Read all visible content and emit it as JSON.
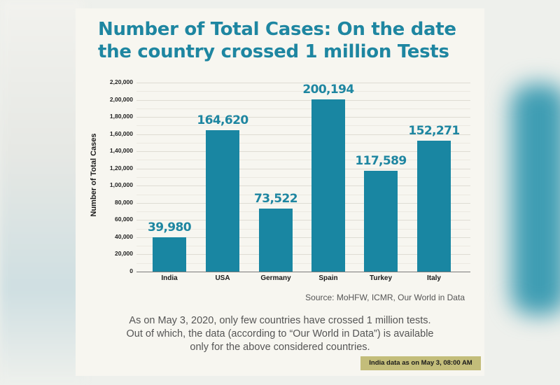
{
  "title_line1": "Number of Total Cases: On the date",
  "title_line2": "the country crossed 1 million Tests",
  "colors": {
    "accent": "#1e86a1",
    "bar": "#1986a2",
    "badge": "#c3bd7a",
    "card": "#f7f6f0"
  },
  "chart_data": {
    "type": "bar",
    "title": "Number of Total Cases: On the date the country crossed 1 million Tests",
    "xlabel": "",
    "ylabel": "Number of Total Cases",
    "categories": [
      "India",
      "USA",
      "Germany",
      "Spain",
      "Turkey",
      "Italy"
    ],
    "values": [
      39980,
      164620,
      73522,
      200194,
      117589,
      152271
    ],
    "value_labels": [
      "39,980",
      "164,620",
      "73,522",
      "200,194",
      "117,589",
      "152,271"
    ],
    "yticks": [
      "0",
      "20,000",
      "40,000",
      "60,000",
      "80,000",
      "1,00,000",
      "1,20,000",
      "1,40,000",
      "1,60,000",
      "1,80,000",
      "2,00,000",
      "2,20,000"
    ],
    "ylim": [
      0,
      220000
    ],
    "grid": true,
    "legend": null
  },
  "source": "Source: MoHFW, ICMR, Our World in Data",
  "note_line1": "As on May 3, 2020, only few countries have crossed 1 million tests.",
  "note_line2": "Out of which, the data (according to “Our World in Data”) is available",
  "note_line3": "only for the above considered countries.",
  "badge": "India data as on May 3, 08:00 AM"
}
